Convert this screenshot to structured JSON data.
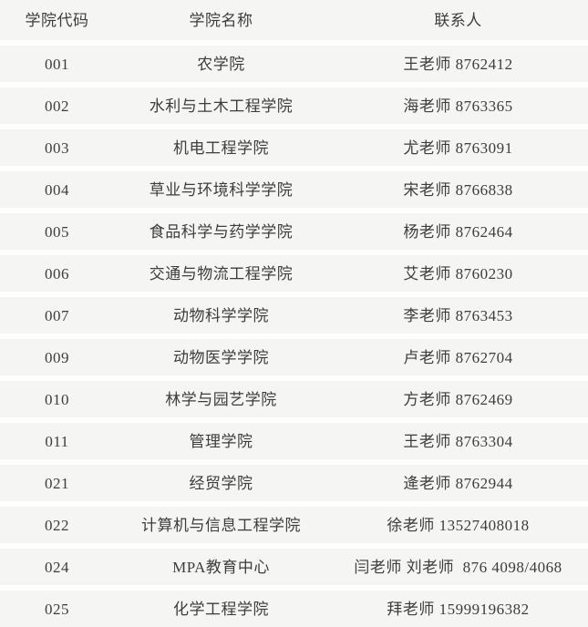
{
  "table": {
    "colors": {
      "row_background": "#f5f5f3",
      "separator": "#ffffff",
      "text": "#3d3d3d"
    },
    "headers": [
      {
        "label": "学院代码"
      },
      {
        "label": "学院名称"
      },
      {
        "label": "联系人"
      }
    ],
    "rows": [
      {
        "code": "001",
        "name": "农学院",
        "contact": "王老师 8762412"
      },
      {
        "code": "002",
        "name": "水利与土木工程学院",
        "contact": "海老师 8763365"
      },
      {
        "code": "003",
        "name": "机电工程学院",
        "contact": "尤老师 8763091"
      },
      {
        "code": "004",
        "name": "草业与环境科学学院",
        "contact": "宋老师 8766838"
      },
      {
        "code": "005",
        "name": "食品科学与药学学院",
        "contact": "杨老师 8762464"
      },
      {
        "code": "006",
        "name": "交通与物流工程学院",
        "contact": "艾老师 8760230"
      },
      {
        "code": "007",
        "name": "动物科学学院",
        "contact": "李老师 8763453"
      },
      {
        "code": "009",
        "name": "动物医学学院",
        "contact": "卢老师 8762704"
      },
      {
        "code": "010",
        "name": "林学与园艺学院",
        "contact": "方老师 8762469"
      },
      {
        "code": "011",
        "name": "管理学院",
        "contact": "王老师 8763304"
      },
      {
        "code": "021",
        "name": "经贸学院",
        "contact": "逄老师 8762944"
      },
      {
        "code": "022",
        "name": "计算机与信息工程学院",
        "contact": "徐老师 13527408018"
      },
      {
        "code": "024",
        "name": "MPA教育中心",
        "contact": "闫老师 刘老师  876 4098/4068"
      },
      {
        "code": "025",
        "name": "化学工程学院",
        "contact": "拜老师 15999196382"
      }
    ]
  }
}
